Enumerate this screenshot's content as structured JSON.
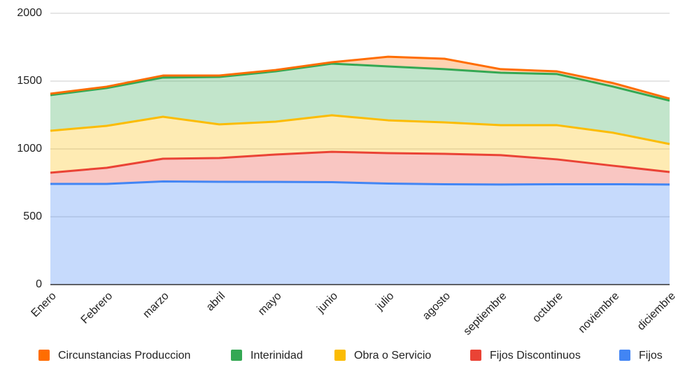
{
  "chart_data": {
    "type": "stacked_area",
    "categories": [
      "Enero",
      "Febrero",
      "marzo",
      "abril",
      "mayo",
      "junio",
      "julio",
      "agosto",
      "septiembre",
      "octubre",
      "noviembre",
      "diciembre"
    ],
    "series": [
      {
        "name": "Circunstancias Produccion",
        "color": "#ff6d01",
        "values": [
          10,
          10,
          15,
          10,
          10,
          10,
          72,
          77,
          26,
          20,
          26,
          15
        ]
      },
      {
        "name": "Interinidad",
        "color": "#34a853",
        "values": [
          263,
          279,
          289,
          350,
          371,
          381,
          397,
          392,
          387,
          377,
          340,
          320
        ]
      },
      {
        "name": "Obra o Servicio",
        "color": "#fbbc04",
        "values": [
          309,
          309,
          309,
          248,
          242,
          269,
          242,
          232,
          221,
          252,
          243,
          206
        ]
      },
      {
        "name": "Fijos Discontinuos",
        "color": "#ea4335",
        "values": [
          83,
          119,
          168,
          175,
          202,
          224,
          224,
          224,
          216,
          183,
          136,
          92
        ]
      },
      {
        "name": "Fijos",
        "color": "#4285f4",
        "values": [
          742,
          742,
          760,
          758,
          757,
          755,
          745,
          740,
          738,
          740,
          740,
          738
        ]
      }
    ],
    "ylim": [
      0,
      2000
    ],
    "yticks": [
      0,
      500,
      1000,
      1500,
      2000
    ],
    "grid": true,
    "legend": "bottom"
  }
}
